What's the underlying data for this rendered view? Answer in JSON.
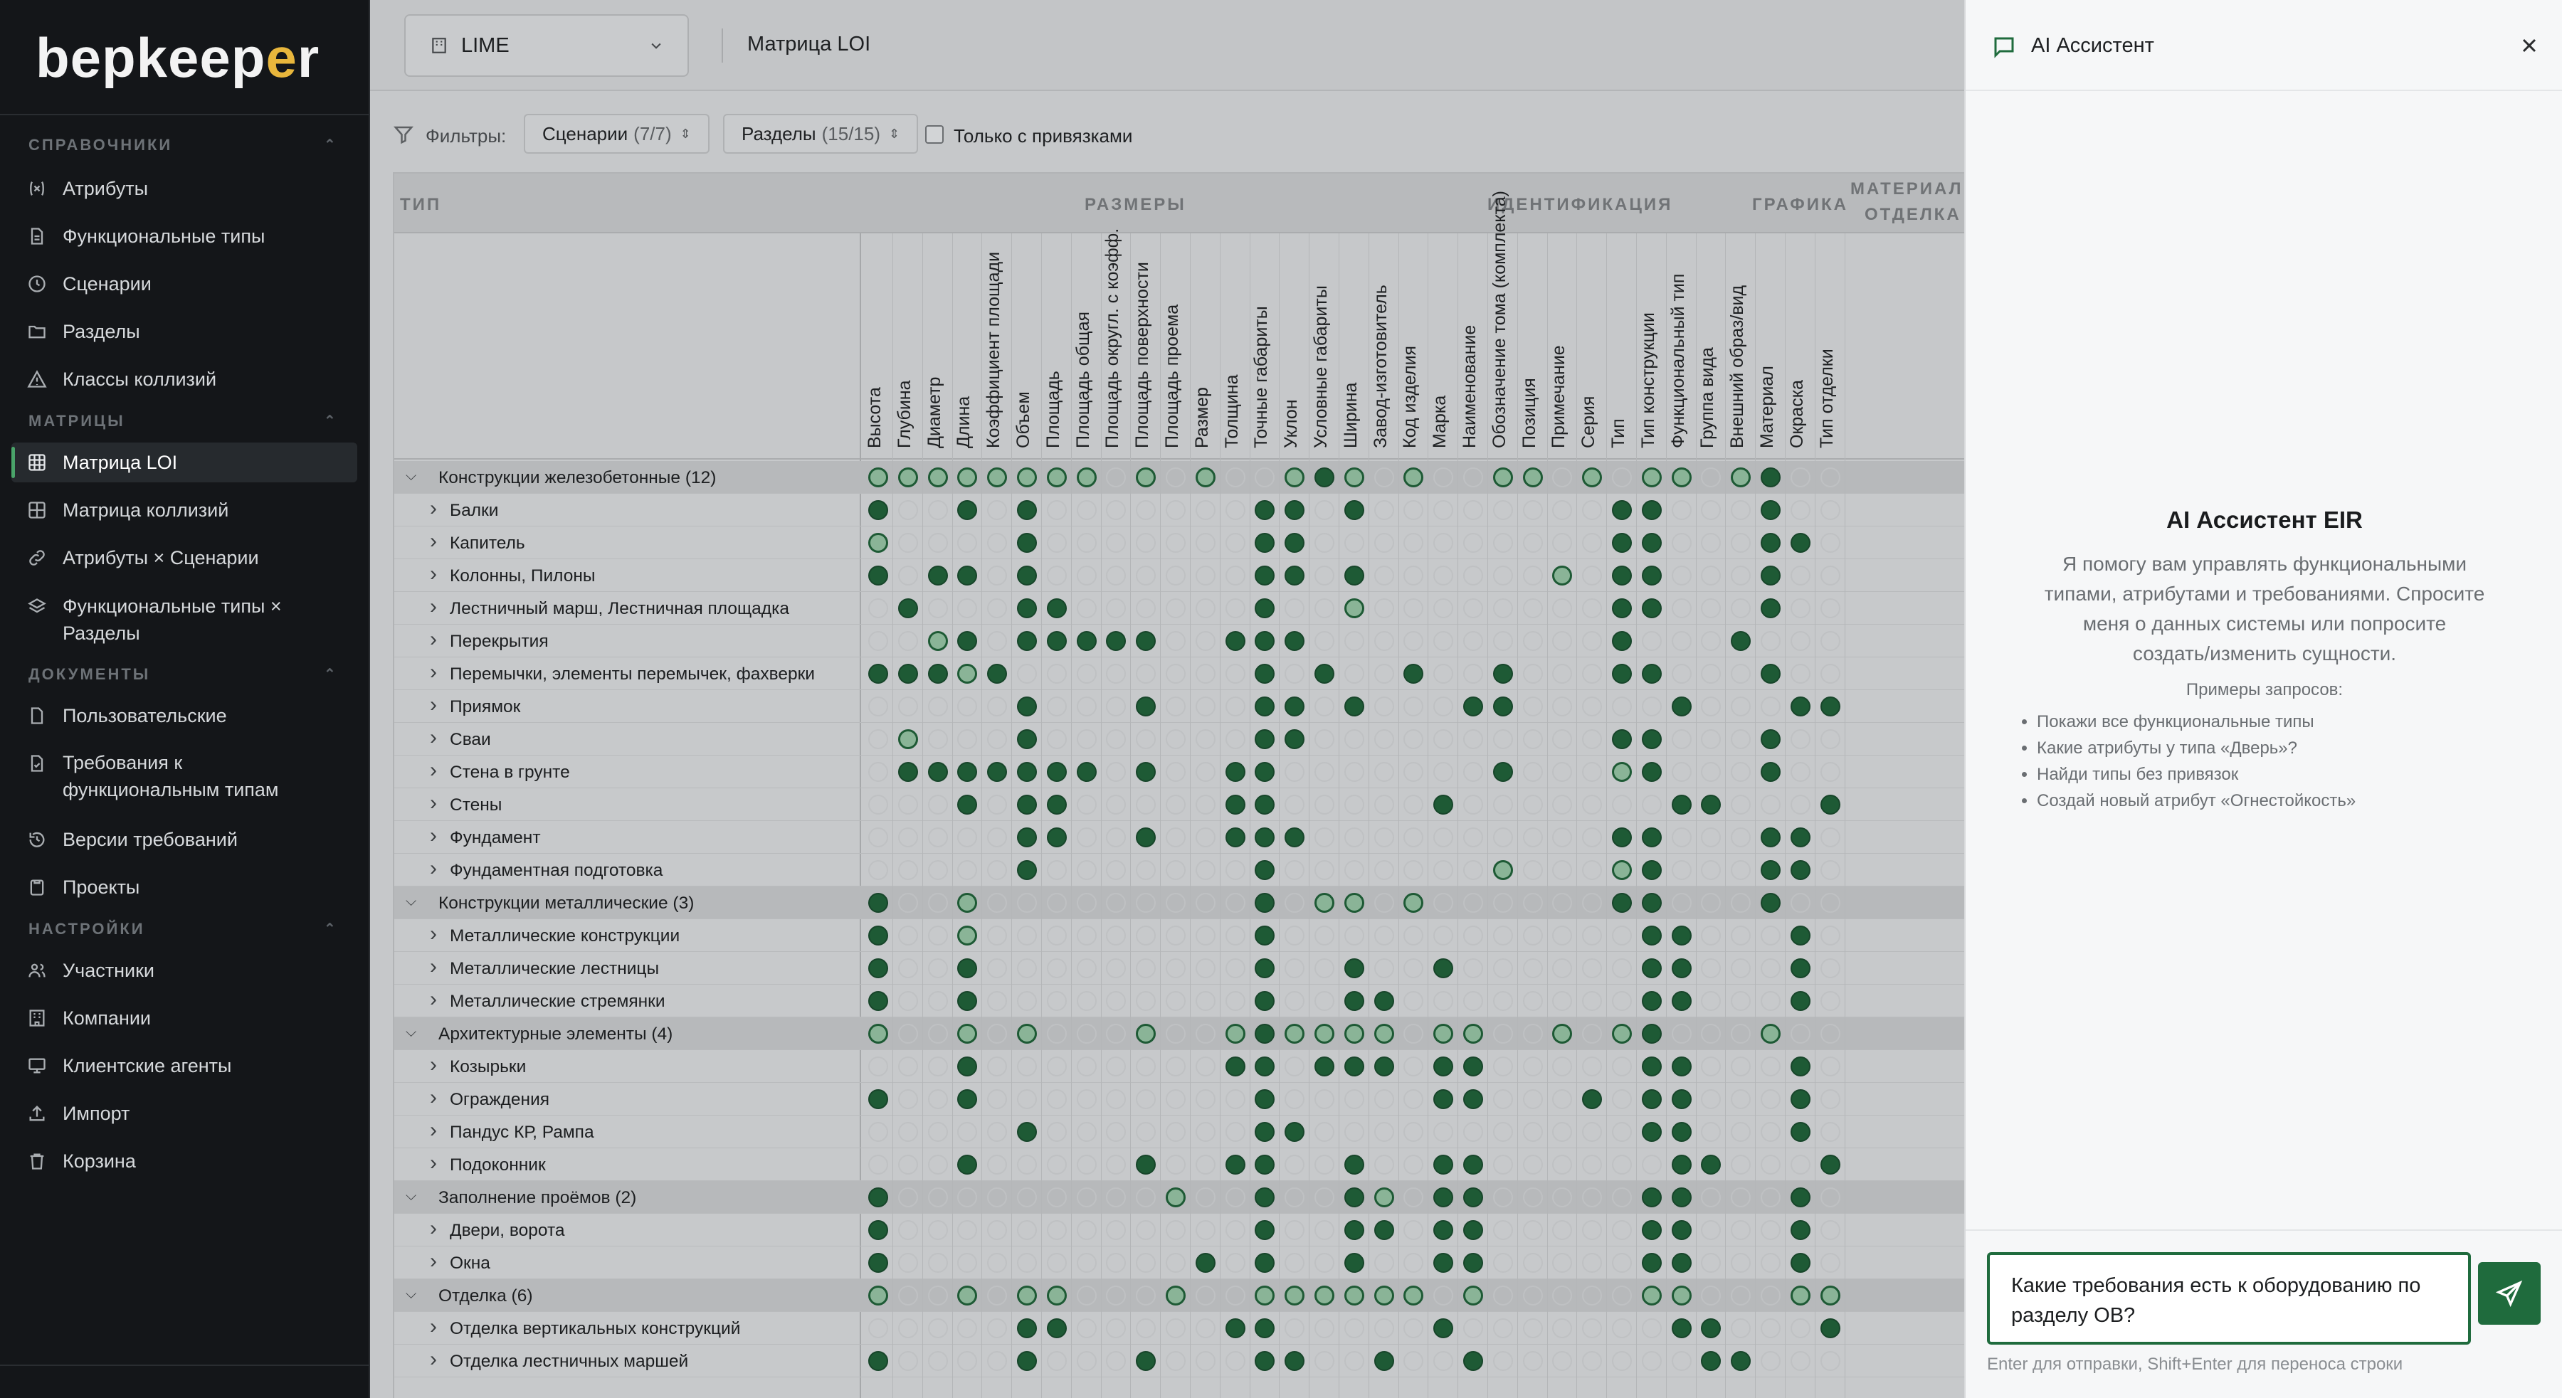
{
  "sidebar": {
    "logo_main": "bepkeep",
    "logo_accent": "e",
    "logo_tail": "r",
    "sections": [
      {
        "title": "СПРАВОЧНИКИ",
        "items": [
          "Атрибуты",
          "Функциональные типы",
          "Сценарии",
          "Разделы",
          "Классы коллизий"
        ]
      },
      {
        "title": "МАТРИЦЫ",
        "items": [
          "Матрица LOI",
          "Матрица коллизий",
          "Атрибуты × Сценарии",
          "Функциональные типы × Разделы"
        ]
      },
      {
        "title": "ДОКУМЕНТЫ",
        "items": [
          "Пользовательские",
          "Требования к функциональным типам",
          "Версии требований",
          "Проекты"
        ]
      },
      {
        "title": "НАСТРОЙКИ",
        "items": [
          "Участники",
          "Компании",
          "Клиентские агенты",
          "Импорт",
          "Корзина"
        ]
      }
    ]
  },
  "topbar": {
    "project": "LIME",
    "breadcrumb": "Матрица LOI"
  },
  "filters": {
    "label": "Фильтры:",
    "scenarios_label": "Сценарии",
    "scenarios_count": "(7/7)",
    "sections_label": "Разделы",
    "sections_count": "(15/15)",
    "only_linked": "Только с привязками"
  },
  "matrix": {
    "type_header": "ТИП",
    "groups": [
      "РАЗМЕРЫ",
      "ИДЕНТИФИКАЦИЯ",
      "ГРАФИКА",
      "МАТЕРИАЛЫ",
      "ОТДЕЛКА"
    ],
    "columns": [
      "Высота",
      "Глубина",
      "Диаметр",
      "Длина",
      "Коэффициент площади",
      "Объем",
      "Площадь",
      "Площадь общая",
      "Площадь округл. с коэфф.",
      "Площадь поверхности",
      "Площадь проема",
      "Размер",
      "Толщина",
      "Точные габариты",
      "Уклон",
      "Условные габариты",
      "Ширина",
      "Завод-изготовитель",
      "Код изделия",
      "Марка",
      "Наименование",
      "Обозначение тома (комплекта)",
      "Позиция",
      "Примечание",
      "Серия",
      "Тип",
      "Тип конструкции",
      "Функциональный тип",
      "Группа вида",
      "Внешний образ/вид",
      "Материал",
      "Окраска",
      "Тип отделки"
    ],
    "rows": [
      {
        "label": "Конструкции железобетонные (12)",
        "group": true,
        "cells": "hhhhhhhh.h.h..hfh.h..hh.h.hh.hf...fh..."
      },
      {
        "label": "Балки",
        "cells": "f..f.f.......ff.f........ff...f...."
      },
      {
        "label": "Капитель",
        "cells": "h....f.......ff..........ff...ff..."
      },
      {
        "label": "Колонны, Пилоны",
        "cells": "f.ff.f.......ff.f......h.ff...f...."
      },
      {
        "label": "Лестничный марш, Лестничная площадка",
        "cells": ".f...ff......f..h........ff...f...."
      },
      {
        "label": "Перекрытия",
        "cells": "..hf.fffff..fff..........f...f...."
      },
      {
        "label": "Перемычки, элементы перемычек, фахверки",
        "cells": "fffhf........f.f..f..f...ff...f...."
      },
      {
        "label": "Приямок",
        "cells": ".....f...f...ff.f...ff.....f...ff..."
      },
      {
        "label": "Сваи",
        "cells": ".h...f.......ff..........ff...f...."
      },
      {
        "label": "Стена в грунте",
        "cells": ".fffffff.f..ff.......f...hf...f...."
      },
      {
        "label": "Стены",
        "cells": "...f.ff.....ff.....f.......ff...f...."
      },
      {
        "label": "Фундамент",
        "cells": ".....ff..f..fff..........ff...ff..."
      },
      {
        "label": "Фундаментная подготовка",
        "cells": ".....f.......f.......h...hf...ff..."
      },
      {
        "label": "Конструкции металлические (3)",
        "group": true,
        "cells": "f..h.........f.hh.h......ff...f...."
      },
      {
        "label": "Металлические конструкции",
        "cells": "f..h.........f............ff...f...."
      },
      {
        "label": "Металлические лестницы",
        "cells": "f..f.........f..f..f......ff...f...."
      },
      {
        "label": "Металлические стремянки",
        "cells": "f..f.........f..ff........ff...f...."
      },
      {
        "label": "Архитектурные элементы (4)",
        "group": true,
        "cells": "h..h.h...h..hfhhhh.hh..h.hf...h...."
      },
      {
        "label": "Козырьки",
        "cells": "...f........ff.fff.ff.....ff...f...."
      },
      {
        "label": "Ограждения",
        "cells": "f..f.........f.....ff...f.ff...f...."
      },
      {
        "label": "Пандус КР, Рампа",
        "cells": ".....f.......ff...........ff...f...."
      },
      {
        "label": "Подоконник",
        "cells": "...f.....f..ff..f..ff......ff...f...."
      },
      {
        "label": "Заполнение проёмов (2)",
        "group": true,
        "cells": "f.........h..f..fh.ff.....ff...f...."
      },
      {
        "label": "Двери, ворота",
        "cells": "f............f..ff.ff.....ff...f...."
      },
      {
        "label": "Окна",
        "cells": "f..........f.f..f..ff.....ff...f...."
      },
      {
        "label": "Отделка (6)",
        "group": true,
        "cells": "h..h.hh...h..hhhhhh.h.....hh...hh.h."
      },
      {
        "label": "Отделка вертикальных конструкций",
        "cells": ".....ff.....ff.....f.......ff...ff..."
      },
      {
        "label": "Отделка лестничных маршей",
        "cells": "f....f...f...ff..f..f.......ff...fff."
      }
    ]
  },
  "assistant": {
    "title": "AI Ассистент",
    "heading": "AI Ассистент EIR",
    "description": "Я помогу вам управлять функциональными типами, атрибутами и требованиями. Спросите меня о данных системы или попросите создать/изменить сущности.",
    "examples_title": "Примеры запросов:",
    "examples": [
      "Покажи все функциональные типы",
      "Какие атрибуты у типа «Дверь»?",
      "Найди типы без привязок",
      "Создай новый атрибут «Огнестойкость»"
    ],
    "input_value": "Какие требования есть к оборудованию по разделу ОВ?",
    "hint": "Enter для отправки, Shift+Enter для переноса строки"
  },
  "colors": {
    "accent": "#1f6b3d",
    "filled_dot": "#1e5a35",
    "half_dot": "#8ab497",
    "logo_accent": "#e8b63c"
  }
}
